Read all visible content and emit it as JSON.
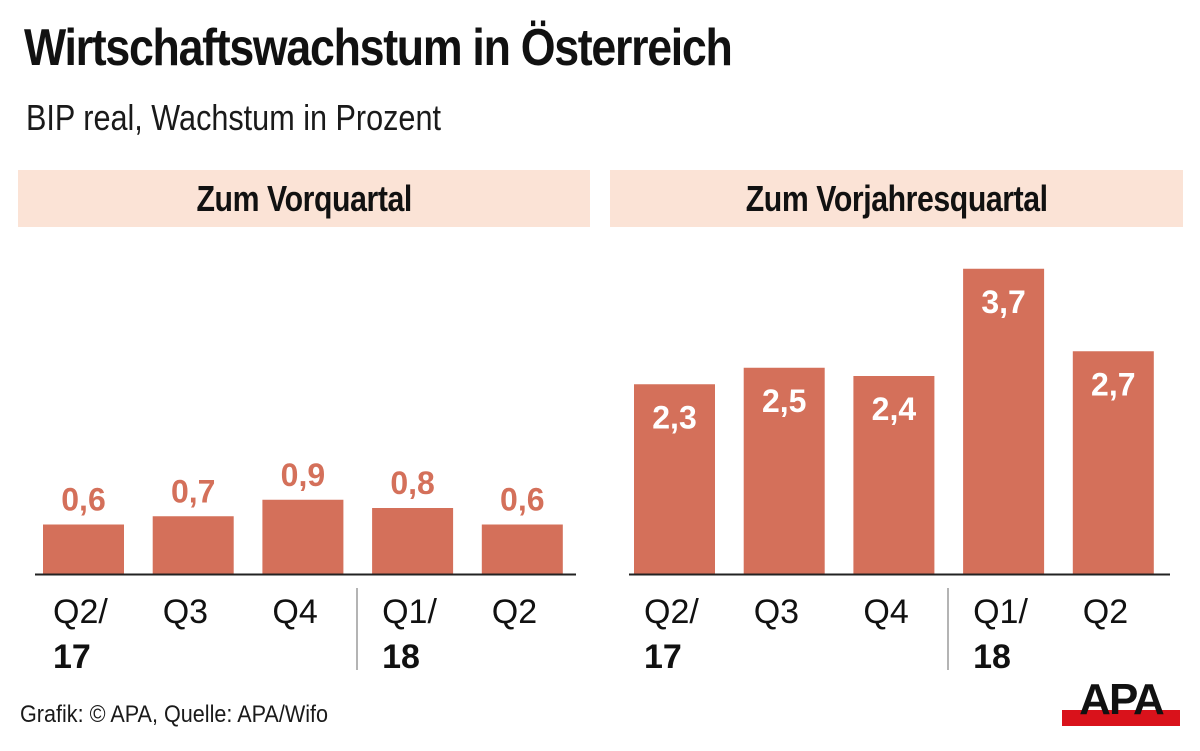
{
  "header": {
    "title": "Wirtschaftswachstum in Österreich",
    "subtitle": "BIP real, Wachstum in Prozent"
  },
  "footer": {
    "credit": "Grafik: © APA, Quelle: APA/Wifo",
    "logo_text": "APA"
  },
  "colors": {
    "bar": "#D4705A",
    "band": "#FBE3D6",
    "axis": "#222222",
    "divider": "#9a9a9a",
    "logo_red": "#D9121B"
  },
  "chart_data": [
    {
      "type": "bar",
      "title": "Zum Vorquartal",
      "categories": [
        "Q2/",
        "Q3",
        "Q4",
        "Q1/",
        "Q2"
      ],
      "year_labels": [
        "17",
        "",
        "",
        "18",
        ""
      ],
      "values": [
        0.6,
        0.7,
        0.9,
        0.8,
        0.6
      ],
      "value_labels": [
        "0,6",
        "0,7",
        "0,9",
        "0,8",
        "0,6"
      ],
      "label_position": "above",
      "xlabel": "",
      "ylabel": "",
      "ylim": [
        0,
        4
      ],
      "grid": false
    },
    {
      "type": "bar",
      "title": "Zum Vorjahresquartal",
      "categories": [
        "Q2/",
        "Q3",
        "Q4",
        "Q1/",
        "Q2"
      ],
      "year_labels": [
        "17",
        "",
        "",
        "18",
        ""
      ],
      "values": [
        2.3,
        2.5,
        2.4,
        3.7,
        2.7
      ],
      "value_labels": [
        "2,3",
        "2,5",
        "2,4",
        "3,7",
        "2,7"
      ],
      "label_position": "inside-top",
      "xlabel": "",
      "ylabel": "",
      "ylim": [
        0,
        4
      ],
      "grid": false
    }
  ]
}
